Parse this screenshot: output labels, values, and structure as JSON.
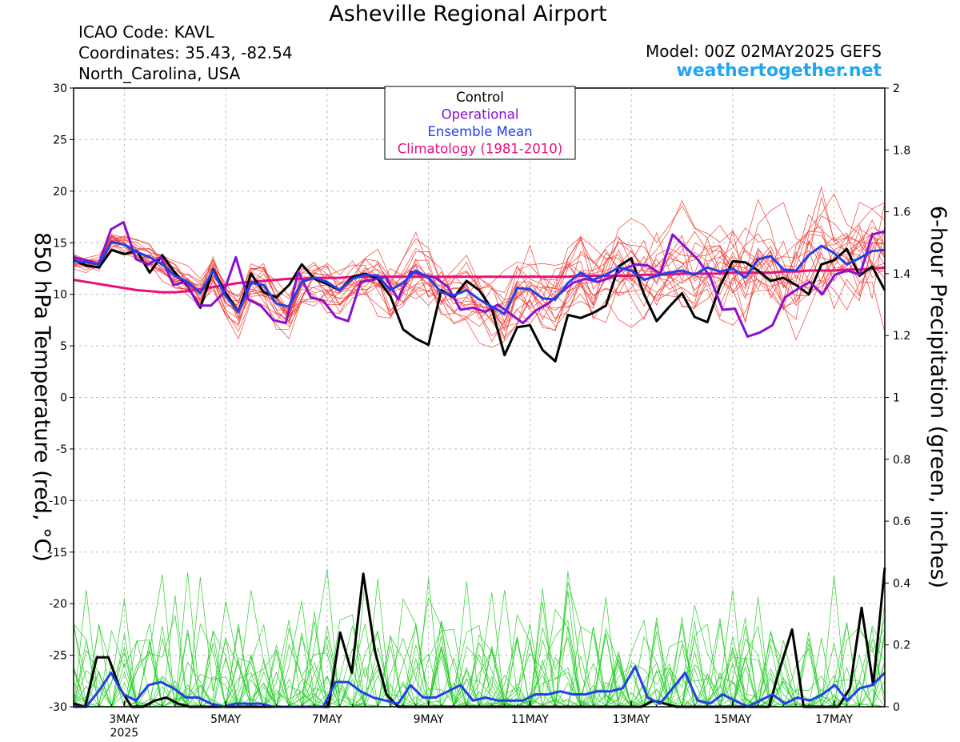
{
  "header": {
    "title": "Asheville Regional Airport",
    "icao": "ICAO Code: KAVL",
    "coordinates": "Coordinates: 35.43, -82.54",
    "region": "North_Carolina, USA",
    "model": "Model: 00Z 02MAY2025 GEFS",
    "website": "weathertogether.net"
  },
  "chart_data": {
    "type": "line",
    "ylabel": "850 hPa Temperature (red, °C)",
    "y2label": "6-hour Precipitation (green, inches)",
    "ylim": [
      -30,
      30
    ],
    "y2lim": [
      0,
      2
    ],
    "x_range": [
      0,
      64
    ],
    "x_ticks": [
      {
        "x": 4,
        "label": "3MAY",
        "sub": "2025"
      },
      {
        "x": 12,
        "label": "5MAY"
      },
      {
        "x": 20,
        "label": "7MAY"
      },
      {
        "x": 28,
        "label": "9MAY"
      },
      {
        "x": 36,
        "label": "11MAY"
      },
      {
        "x": 44,
        "label": "13MAY"
      },
      {
        "x": 52,
        "label": "15MAY"
      },
      {
        "x": 60,
        "label": "17MAY"
      }
    ],
    "y_ticks": [
      30,
      25,
      20,
      15,
      10,
      5,
      0,
      -5,
      -10,
      -15,
      -20,
      -25,
      -30
    ],
    "y2_ticks": [
      "2",
      "1.8",
      "1.6",
      "1.4",
      "1.2",
      "1",
      "0.8",
      "0.6",
      "0.4",
      "0.2",
      "0"
    ],
    "legend": [
      {
        "name": "Control",
        "color": "#000000"
      },
      {
        "name": "Operational",
        "color": "#8a10d0"
      },
      {
        "name": "Ensemble Mean",
        "color": "#2040e8"
      },
      {
        "name": "Climatology (1981-2010)",
        "color": "#e8107a"
      }
    ],
    "legend_position": "top-center",
    "colors": {
      "members_temp": "#ee3a32",
      "members_precip": "#22cc22",
      "control": "#000000",
      "operational": "#8a10d0",
      "ensemble_mean": "#2040e8",
      "climatology": "#e8107a"
    },
    "series": [
      {
        "key": "control",
        "axis": "temp",
        "values": [
          13.3,
          12.8,
          12.6,
          14.3,
          13.9,
          14.2,
          12.1,
          13.8,
          12.1,
          10.8,
          8.7,
          12.4,
          10.1,
          8.3,
          12.0,
          10.2,
          9.7,
          10.9,
          12.9,
          11.5,
          11.0,
          10.4,
          11.7,
          12.0,
          11.5,
          9.8,
          6.6,
          5.7,
          5.1,
          10.4,
          9.7,
          11.3,
          10.4,
          8.6,
          4.1,
          6.8,
          7.0,
          4.6,
          3.5,
          8.0,
          7.7,
          8.2,
          8.9,
          12.7,
          13.5,
          10.0,
          7.4,
          8.8,
          10.1,
          7.8,
          7.3,
          10.8,
          13.2,
          13.1,
          12.3,
          11.3,
          11.6,
          10.9,
          10.0,
          12.9,
          13.3,
          14.4,
          11.8,
          12.7,
          10.4
        ]
      },
      {
        "key": "operational",
        "axis": "temp",
        "values": [
          13.6,
          13.3,
          12.9,
          16.3,
          17.0,
          13.4,
          12.9,
          13.6,
          10.9,
          11.2,
          8.9,
          8.9,
          10.1,
          13.6,
          9.5,
          8.9,
          7.5,
          7.2,
          12.2,
          9.7,
          9.4,
          7.8,
          7.4,
          11.2,
          11.4,
          11.7,
          9.5,
          12.2,
          11.9,
          11.6,
          10.7,
          8.5,
          8.7,
          8.3,
          9.0,
          8.1,
          7.2,
          8.4,
          9.1,
          10.1,
          11.1,
          11.5,
          11.2,
          11.6,
          12.4,
          12.9,
          12.8,
          12.0,
          15.8,
          14.6,
          13.4,
          11.7,
          8.5,
          8.6,
          5.9,
          6.3,
          7.0,
          9.7,
          10.5,
          11.2,
          10.0,
          11.9,
          12.3,
          11.9,
          15.8,
          16.1
        ]
      },
      {
        "key": "ensemble_mean",
        "axis": "temp",
        "values": [
          13.2,
          13.1,
          12.9,
          15.1,
          14.8,
          14.1,
          13.6,
          12.9,
          11.8,
          11.2,
          10.1,
          12.3,
          9.8,
          8.3,
          11.1,
          10.9,
          9.1,
          8.8,
          11.2,
          11.6,
          11.2,
          10.4,
          11.5,
          11.9,
          11.8,
          10.4,
          11.1,
          12.3,
          11.6,
          10.2,
          9.9,
          10.4,
          9.5,
          8.8,
          8.1,
          10.6,
          10.5,
          9.6,
          9.5,
          11.1,
          12.1,
          11.4,
          11.9,
          12.6,
          12.3,
          11.4,
          11.8,
          12.1,
          12.3,
          11.9,
          12.6,
          12.2,
          12.5,
          11.6,
          13.4,
          13.7,
          12.4,
          12.3,
          13.8,
          14.7,
          14.0,
          12.9,
          13.5,
          14.2,
          14.3
        ]
      },
      {
        "key": "climatology",
        "axis": "temp",
        "values": [
          11.4,
          11.2,
          11.0,
          10.8,
          10.6,
          10.4,
          10.3,
          10.2,
          10.2,
          10.3,
          10.5,
          10.7,
          10.9,
          11.1,
          11.2,
          11.3,
          11.4,
          11.5,
          11.5,
          11.6,
          11.6,
          11.6,
          11.7,
          11.7,
          11.7,
          11.7,
          11.7,
          11.7,
          11.7,
          11.7,
          11.7,
          11.7,
          11.7,
          11.7,
          11.7,
          11.7,
          11.7,
          11.7,
          11.7,
          11.7,
          11.8,
          11.8,
          11.8,
          11.8,
          11.8,
          11.9,
          11.9,
          11.9,
          12.0,
          12.0,
          12.0,
          12.0,
          12.1,
          12.1,
          12.1,
          12.1,
          12.2,
          12.2,
          12.3,
          12.3,
          12.3,
          12.4,
          12.4,
          12.5,
          12.6
        ]
      },
      {
        "key": "control_precip",
        "axis": "precip",
        "values": [
          0.01,
          0,
          0.16,
          0.16,
          0.06,
          0,
          0,
          0.02,
          0.03,
          0.01,
          0,
          0,
          0,
          0,
          0,
          0,
          0,
          0,
          0,
          0,
          0,
          0,
          0,
          0.24,
          0.11,
          0.43,
          0.18,
          0.04,
          0,
          0,
          0,
          0,
          0,
          0,
          0,
          0,
          0,
          0,
          0,
          0,
          0,
          0,
          0,
          0,
          0,
          0,
          0,
          0,
          0,
          0,
          0.02,
          0.01,
          0,
          0,
          0,
          0,
          0,
          0,
          0,
          0,
          0,
          0.13,
          0.25,
          0,
          0,
          0,
          0,
          0.06,
          0.32,
          0.07,
          0.45
        ]
      },
      {
        "key": "ensemble_mean_precip",
        "axis": "precip",
        "values": [
          0,
          0,
          0.05,
          0.11,
          0.04,
          0.02,
          0.07,
          0.08,
          0.06,
          0.03,
          0.03,
          0.01,
          0,
          0.01,
          0.01,
          0.01,
          0,
          0,
          0,
          0,
          0,
          0.08,
          0.08,
          0.05,
          0.03,
          0.02,
          0.01,
          0.07,
          0.03,
          0.03,
          0.05,
          0.07,
          0.02,
          0.03,
          0.02,
          0.02,
          0.02,
          0.04,
          0.04,
          0.05,
          0.04,
          0.04,
          0.05,
          0.05,
          0.06,
          0.13,
          0.03,
          0.01,
          0.06,
          0.11,
          0.02,
          0.01,
          0.04,
          0.02,
          0,
          0.02,
          0.04,
          0.01,
          0.03,
          0.02,
          0.04,
          0.07,
          0.02,
          0.06,
          0.07,
          0.11
        ]
      }
    ]
  }
}
